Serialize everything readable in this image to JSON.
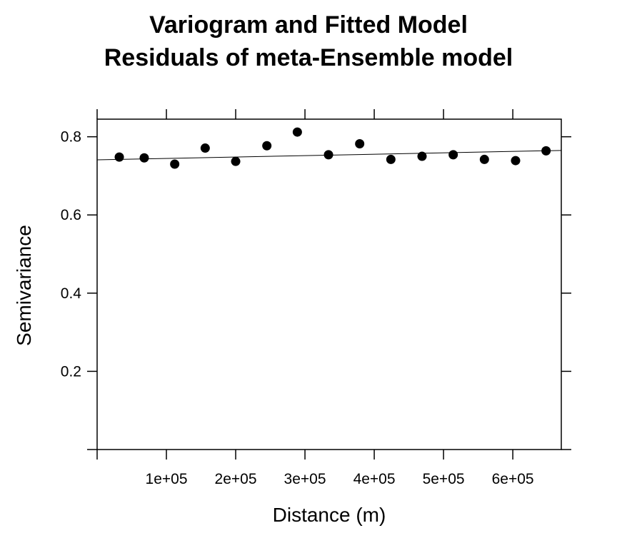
{
  "chart_data": {
    "type": "scatter",
    "title": "Variogram and Fitted Model",
    "subtitle": "Residuals of meta-Ensemble model",
    "xlabel": "Distance (m)",
    "ylabel": "Semivariance",
    "xlim": [
      0,
      670000
    ],
    "ylim": [
      0,
      0.845
    ],
    "x_ticks": [
      100000,
      200000,
      300000,
      400000,
      500000,
      600000
    ],
    "x_tick_labels": [
      "1e+05",
      "2e+05",
      "3e+05",
      "4e+05",
      "5e+05",
      "6e+05"
    ],
    "y_ticks": [
      0.2,
      0.4,
      0.6,
      0.8
    ],
    "y_tick_labels": [
      "0.2",
      "0.4",
      "0.6",
      "0.8"
    ],
    "grid": false,
    "points": [
      {
        "x": 32000,
        "y": 0.748
      },
      {
        "x": 68000,
        "y": 0.746
      },
      {
        "x": 112000,
        "y": 0.73
      },
      {
        "x": 156000,
        "y": 0.771
      },
      {
        "x": 200000,
        "y": 0.737
      },
      {
        "x": 245000,
        "y": 0.777
      },
      {
        "x": 289000,
        "y": 0.812
      },
      {
        "x": 334000,
        "y": 0.754
      },
      {
        "x": 379000,
        "y": 0.782
      },
      {
        "x": 424000,
        "y": 0.742
      },
      {
        "x": 469000,
        "y": 0.75
      },
      {
        "x": 514000,
        "y": 0.754
      },
      {
        "x": 559000,
        "y": 0.742
      },
      {
        "x": 604000,
        "y": 0.739
      },
      {
        "x": 648000,
        "y": 0.764
      }
    ],
    "fitted_line": [
      {
        "x": 0,
        "y": 0.741
      },
      {
        "x": 670000,
        "y": 0.765
      }
    ],
    "point_color": "#000000",
    "line_color": "#000000"
  }
}
